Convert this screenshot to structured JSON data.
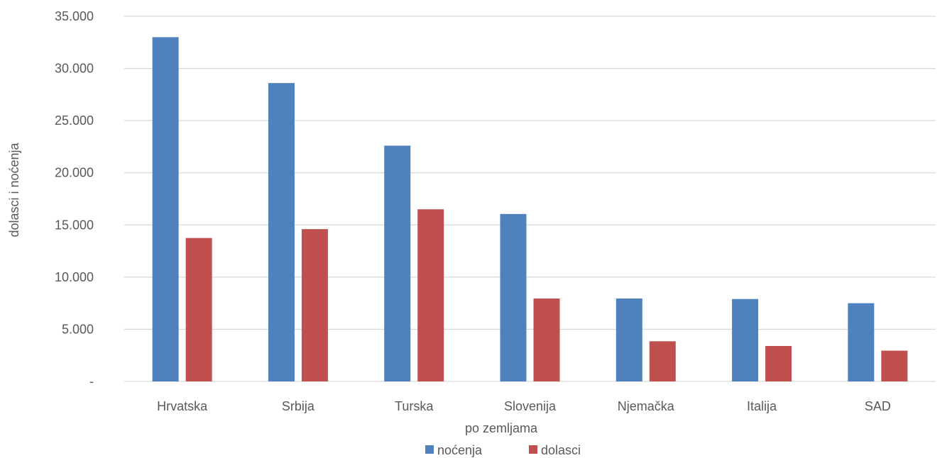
{
  "chart_data": {
    "type": "bar",
    "categories": [
      "Hrvatska",
      "Srbija",
      "Turska",
      "Slovenija",
      "Njemačka",
      "Italija",
      "SAD"
    ],
    "series": [
      {
        "name": "noćenja",
        "color": "#4F81BD",
        "values": [
          33000,
          28600,
          22600,
          16050,
          7950,
          7900,
          7500
        ]
      },
      {
        "name": "dolasci",
        "color": "#C0504D",
        "values": [
          13750,
          14600,
          16500,
          7950,
          3850,
          3400,
          2950
        ]
      }
    ],
    "xlabel": "po zemljama",
    "ylabel": "dolasci i noćenja",
    "ylim": [
      0,
      35000
    ],
    "yticks": [
      {
        "value": 0,
        "label": "-"
      },
      {
        "value": 5000,
        "label": "5.000"
      },
      {
        "value": 10000,
        "label": "10.000"
      },
      {
        "value": 15000,
        "label": "15.000"
      },
      {
        "value": 20000,
        "label": "20.000"
      },
      {
        "value": 25000,
        "label": "25.000"
      },
      {
        "value": 30000,
        "label": "30.000"
      },
      {
        "value": 35000,
        "label": "35.000"
      }
    ],
    "grid": true,
    "legend_position": "bottom",
    "gridline_color": "#D9D9D9"
  }
}
